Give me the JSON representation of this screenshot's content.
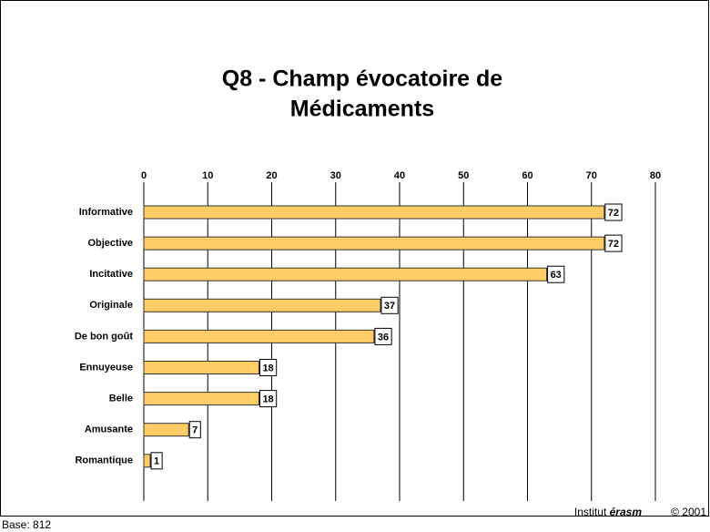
{
  "chart_data": {
    "type": "bar",
    "orientation": "horizontal",
    "title_lines": [
      "Q8 - Champ évocatoire de",
      "Médicaments"
    ],
    "categories": [
      "Informative",
      "Objective",
      "Incitative",
      "Originale",
      "De bon goût",
      "Ennuyeuse",
      "Belle",
      "Amusante",
      "Romantique"
    ],
    "values": [
      72,
      72,
      63,
      37,
      36,
      18,
      18,
      7,
      1
    ],
    "color": "#ffcc66",
    "xlim": [
      0,
      80
    ],
    "xticks": [
      0,
      10,
      20,
      30,
      40,
      50,
      60,
      70,
      80
    ],
    "grid": true
  },
  "footer": {
    "institut": "Institut",
    "brand": "érasm",
    "copyright": "© 2001",
    "base": "Base: 812"
  }
}
